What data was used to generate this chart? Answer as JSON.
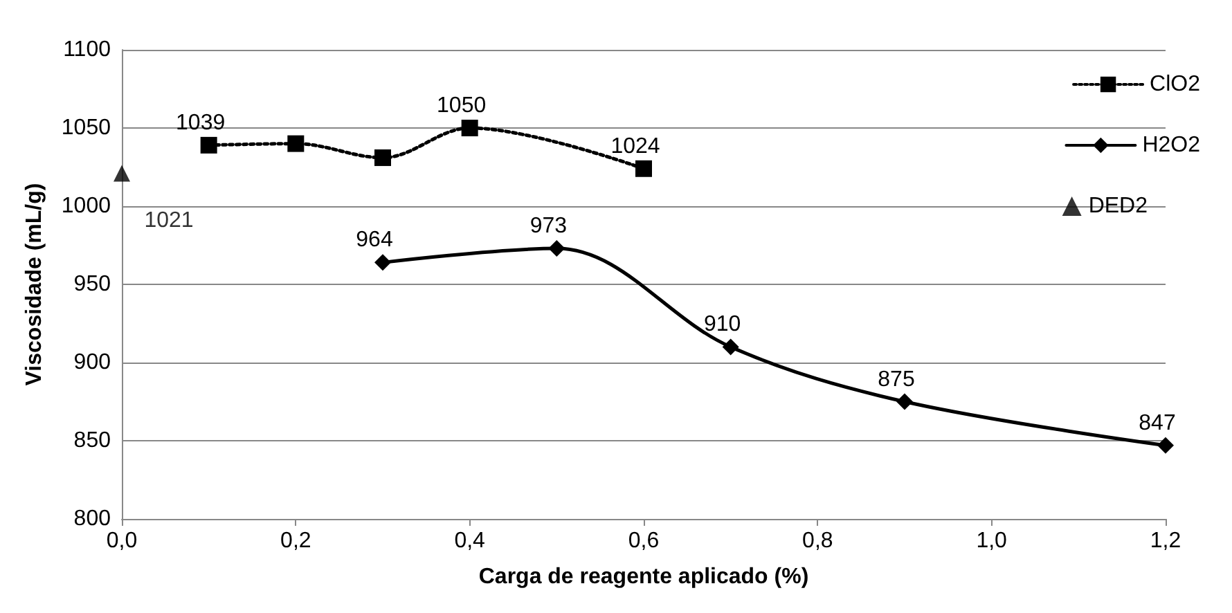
{
  "chart_data": {
    "type": "line",
    "xlabel": "Carga de reagente aplicado (%)",
    "ylabel": "Viscosidade (mL/g)",
    "xlim": [
      0,
      1.2
    ],
    "xticks": [
      {
        "value": 0,
        "label": "0,0"
      },
      {
        "value": 0.2,
        "label": "0,2"
      },
      {
        "value": 0.4,
        "label": "0,4"
      },
      {
        "value": 0.6,
        "label": "0,6"
      },
      {
        "value": 0.8,
        "label": "0,8"
      },
      {
        "value": 1.0,
        "label": "1,0"
      },
      {
        "value": 1.2,
        "label": "1,2"
      }
    ],
    "ylim": [
      800,
      1100
    ],
    "yticks": [
      800,
      850,
      900,
      950,
      1000,
      1050,
      1100
    ],
    "grid": "y",
    "legend": "right",
    "series": [
      {
        "name": "ClO2",
        "color": "#000000",
        "marker": "square",
        "line_style": "dotted",
        "x": [
          0.1,
          0.2,
          0.3,
          0.4,
          0.6
        ],
        "values": [
          1039,
          1040,
          1031,
          1050,
          1024
        ],
        "value_labels": [
          "1039",
          null,
          null,
          "1050",
          "1024"
        ]
      },
      {
        "name": "H2O2",
        "color": "#000000",
        "marker": "diamond",
        "line_style": "solid",
        "x": [
          0.3,
          0.5,
          0.7,
          0.9,
          1.2
        ],
        "values": [
          964,
          973,
          910,
          875,
          847
        ],
        "value_labels": [
          "964",
          "973",
          "910",
          "875",
          "847"
        ]
      },
      {
        "name": "DED2",
        "type": "scatter",
        "color": "#000000",
        "marker": "triangle",
        "x": [
          0
        ],
        "values": [
          1021
        ],
        "value_labels": [
          "1021"
        ]
      }
    ]
  }
}
